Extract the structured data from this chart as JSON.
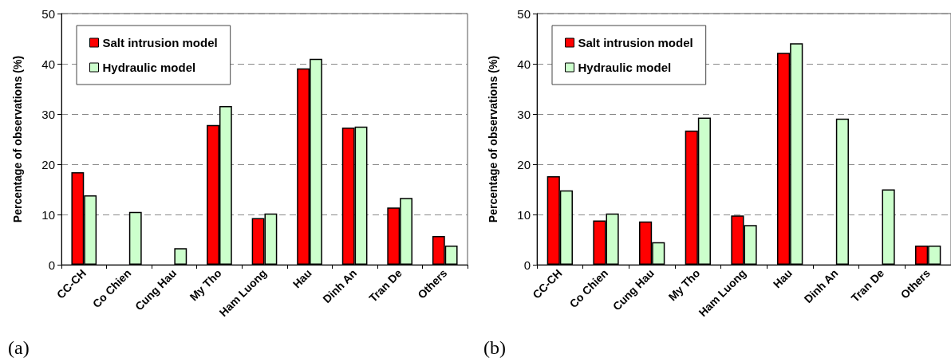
{
  "chart_data": [
    {
      "type": "bar",
      "ylabel": "Percentage of observations (%)",
      "categories": [
        "CC-CH",
        "Co Chien",
        "Cung Hau",
        "My Tho",
        "Ham Luong",
        "Hau",
        "Dinh An",
        "Tran De",
        "Others"
      ],
      "series": [
        {
          "name": "Salt intrusion model",
          "color": "#ff0000",
          "values": [
            18.4,
            null,
            null,
            27.8,
            9.3,
            39.1,
            27.3,
            11.4,
            5.7
          ]
        },
        {
          "name": "Hydraulic model",
          "color": "#ccffcc",
          "values": [
            13.8,
            10.5,
            3.3,
            31.6,
            10.2,
            41.0,
            27.5,
            13.3,
            3.8
          ]
        }
      ],
      "ylim": [
        0,
        50
      ],
      "yticks": [
        0,
        10,
        20,
        30,
        40,
        50
      ],
      "grid": "y",
      "legend": "top left",
      "annotations": [
        "(a)"
      ]
    },
    {
      "type": "bar",
      "ylabel": "Percentage of observations (%)",
      "categories": [
        "CC-CH",
        "Co Chien",
        "Cung Hau",
        "My Tho",
        "Ham Luong",
        "Hau",
        "Dinh An",
        "Tran De",
        "Others"
      ],
      "series": [
        {
          "name": "Salt intrusion model",
          "color": "#ff0000",
          "values": [
            17.6,
            8.8,
            8.6,
            26.7,
            9.8,
            42.2,
            null,
            null,
            3.8
          ]
        },
        {
          "name": "Hydraulic model",
          "color": "#ccffcc",
          "values": [
            14.8,
            10.2,
            4.5,
            29.3,
            7.9,
            44.1,
            29.1,
            15.0,
            3.8
          ]
        }
      ],
      "ylim": [
        0,
        50
      ],
      "yticks": [
        0,
        10,
        20,
        30,
        40,
        50
      ],
      "grid": "y",
      "legend": "top left",
      "annotations": [
        "(b)"
      ]
    }
  ]
}
